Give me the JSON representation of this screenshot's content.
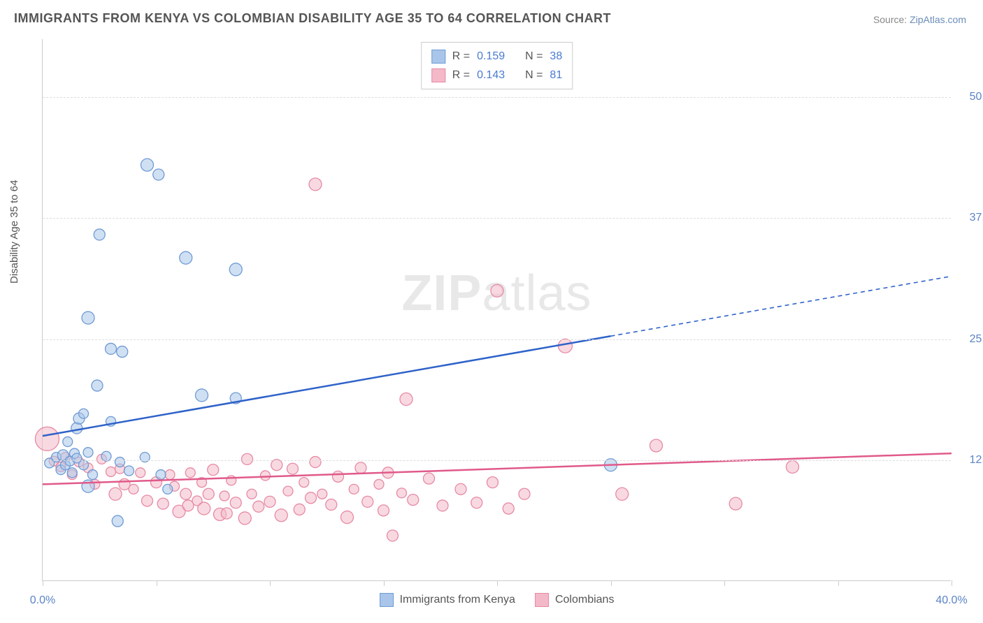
{
  "title": "IMMIGRANTS FROM KENYA VS COLOMBIAN DISABILITY AGE 35 TO 64 CORRELATION CHART",
  "source_label": "Source:",
  "source_name": "ZipAtlas.com",
  "ylabel": "Disability Age 35 to 64",
  "watermark": "ZIPatlas",
  "chart": {
    "type": "scatter",
    "xlim": [
      0,
      40
    ],
    "ylim": [
      0,
      56
    ],
    "x_ticks": [
      0,
      5,
      10,
      15,
      20,
      25,
      30,
      35,
      40
    ],
    "x_tick_labels": {
      "0": "0.0%",
      "40": "40.0%"
    },
    "y_ticks": [
      12.5,
      25.0,
      37.5,
      50.0
    ],
    "y_tick_labels": [
      "12.5%",
      "25.0%",
      "37.5%",
      "50.0%"
    ],
    "background_color": "#ffffff",
    "grid_color": "#dddddd",
    "axis_color": "#cccccc",
    "tick_label_color": "#5b84c4"
  },
  "series": [
    {
      "name": "Immigrants from Kenya",
      "marker_fill": "#a9c6ea",
      "marker_stroke": "#6f9bd4",
      "marker_fill_opacity": 0.55,
      "line_color": "#2e62c9",
      "line_width": 2.5,
      "trend": {
        "x1": 0,
        "y1": 15.0,
        "x2": 40,
        "y2": 31.5,
        "solid_until_x": 25
      },
      "R": "0.159",
      "N": "38",
      "points": [
        {
          "x": 0.3,
          "y": 12.2,
          "r": 7
        },
        {
          "x": 0.6,
          "y": 12.8,
          "r": 7
        },
        {
          "x": 0.8,
          "y": 11.5,
          "r": 7
        },
        {
          "x": 0.9,
          "y": 13.0,
          "r": 8
        },
        {
          "x": 1.0,
          "y": 12.0,
          "r": 7
        },
        {
          "x": 1.1,
          "y": 14.4,
          "r": 7
        },
        {
          "x": 1.2,
          "y": 12.4,
          "r": 7
        },
        {
          "x": 1.3,
          "y": 11.2,
          "r": 7
        },
        {
          "x": 1.4,
          "y": 13.2,
          "r": 7
        },
        {
          "x": 1.5,
          "y": 12.7,
          "r": 7
        },
        {
          "x": 1.5,
          "y": 15.8,
          "r": 8
        },
        {
          "x": 1.6,
          "y": 16.8,
          "r": 8
        },
        {
          "x": 1.8,
          "y": 12.0,
          "r": 7
        },
        {
          "x": 1.8,
          "y": 17.3,
          "r": 7
        },
        {
          "x": 2.0,
          "y": 9.8,
          "r": 9
        },
        {
          "x": 2.0,
          "y": 27.2,
          "r": 9
        },
        {
          "x": 2.0,
          "y": 13.3,
          "r": 7
        },
        {
          "x": 2.2,
          "y": 11.0,
          "r": 7
        },
        {
          "x": 2.4,
          "y": 20.2,
          "r": 8
        },
        {
          "x": 2.5,
          "y": 35.8,
          "r": 8
        },
        {
          "x": 2.8,
          "y": 12.9,
          "r": 7
        },
        {
          "x": 3.0,
          "y": 24.0,
          "r": 8
        },
        {
          "x": 3.0,
          "y": 16.5,
          "r": 7
        },
        {
          "x": 3.3,
          "y": 6.2,
          "r": 8
        },
        {
          "x": 3.4,
          "y": 12.3,
          "r": 7
        },
        {
          "x": 3.5,
          "y": 23.7,
          "r": 8
        },
        {
          "x": 3.8,
          "y": 11.4,
          "r": 7
        },
        {
          "x": 4.6,
          "y": 43.0,
          "r": 9
        },
        {
          "x": 4.5,
          "y": 12.8,
          "r": 7
        },
        {
          "x": 5.1,
          "y": 42.0,
          "r": 8
        },
        {
          "x": 5.2,
          "y": 11.0,
          "r": 7
        },
        {
          "x": 5.5,
          "y": 9.5,
          "r": 7
        },
        {
          "x": 6.3,
          "y": 33.4,
          "r": 9
        },
        {
          "x": 7.0,
          "y": 19.2,
          "r": 9
        },
        {
          "x": 8.5,
          "y": 32.2,
          "r": 9
        },
        {
          "x": 8.5,
          "y": 18.9,
          "r": 8
        },
        {
          "x": 25.0,
          "y": 12.0,
          "r": 9
        }
      ]
    },
    {
      "name": "Colombians",
      "marker_fill": "#f4b9c9",
      "marker_stroke": "#e68aa5",
      "marker_fill_opacity": 0.55,
      "line_color": "#e05a8a",
      "line_width": 2.5,
      "trend": {
        "x1": 0,
        "y1": 10.0,
        "x2": 40,
        "y2": 13.2,
        "solid_until_x": 40
      },
      "R": "0.143",
      "N": "81",
      "points": [
        {
          "x": 0.2,
          "y": 14.7,
          "r": 17
        },
        {
          "x": 0.5,
          "y": 12.4,
          "r": 7
        },
        {
          "x": 0.8,
          "y": 11.8,
          "r": 7
        },
        {
          "x": 1.0,
          "y": 12.8,
          "r": 7
        },
        {
          "x": 1.3,
          "y": 11.0,
          "r": 7
        },
        {
          "x": 1.6,
          "y": 12.3,
          "r": 7
        },
        {
          "x": 2.0,
          "y": 11.7,
          "r": 7
        },
        {
          "x": 2.3,
          "y": 10.0,
          "r": 7
        },
        {
          "x": 2.6,
          "y": 12.6,
          "r": 7
        },
        {
          "x": 3.0,
          "y": 11.3,
          "r": 7
        },
        {
          "x": 3.2,
          "y": 9.0,
          "r": 9
        },
        {
          "x": 3.4,
          "y": 11.6,
          "r": 7
        },
        {
          "x": 3.6,
          "y": 10.0,
          "r": 8
        },
        {
          "x": 4.0,
          "y": 9.5,
          "r": 7
        },
        {
          "x": 4.3,
          "y": 11.2,
          "r": 7
        },
        {
          "x": 4.6,
          "y": 8.3,
          "r": 8
        },
        {
          "x": 5.0,
          "y": 10.2,
          "r": 8
        },
        {
          "x": 5.3,
          "y": 8.0,
          "r": 8
        },
        {
          "x": 5.6,
          "y": 11.0,
          "r": 7
        },
        {
          "x": 5.8,
          "y": 9.8,
          "r": 7
        },
        {
          "x": 6.0,
          "y": 7.2,
          "r": 9
        },
        {
          "x": 6.3,
          "y": 9.0,
          "r": 8
        },
        {
          "x": 6.4,
          "y": 7.8,
          "r": 8
        },
        {
          "x": 6.5,
          "y": 11.2,
          "r": 7
        },
        {
          "x": 6.8,
          "y": 8.3,
          "r": 7
        },
        {
          "x": 7.0,
          "y": 10.2,
          "r": 7
        },
        {
          "x": 7.1,
          "y": 7.5,
          "r": 9
        },
        {
          "x": 7.3,
          "y": 9.0,
          "r": 8
        },
        {
          "x": 7.5,
          "y": 11.5,
          "r": 8
        },
        {
          "x": 7.8,
          "y": 6.9,
          "r": 9
        },
        {
          "x": 8.0,
          "y": 8.8,
          "r": 7
        },
        {
          "x": 8.1,
          "y": 7.0,
          "r": 8
        },
        {
          "x": 8.3,
          "y": 10.4,
          "r": 7
        },
        {
          "x": 8.5,
          "y": 8.1,
          "r": 8
        },
        {
          "x": 8.9,
          "y": 6.5,
          "r": 9
        },
        {
          "x": 9.0,
          "y": 12.6,
          "r": 8
        },
        {
          "x": 9.2,
          "y": 9.0,
          "r": 7
        },
        {
          "x": 9.5,
          "y": 7.7,
          "r": 8
        },
        {
          "x": 9.8,
          "y": 10.9,
          "r": 7
        },
        {
          "x": 10.0,
          "y": 8.2,
          "r": 8
        },
        {
          "x": 10.3,
          "y": 12.0,
          "r": 8
        },
        {
          "x": 10.5,
          "y": 6.8,
          "r": 9
        },
        {
          "x": 10.8,
          "y": 9.3,
          "r": 7
        },
        {
          "x": 11.0,
          "y": 11.6,
          "r": 8
        },
        {
          "x": 11.3,
          "y": 7.4,
          "r": 8
        },
        {
          "x": 11.5,
          "y": 10.2,
          "r": 7
        },
        {
          "x": 11.8,
          "y": 8.6,
          "r": 8
        },
        {
          "x": 12.0,
          "y": 12.3,
          "r": 8
        },
        {
          "x": 12.0,
          "y": 41.0,
          "r": 9
        },
        {
          "x": 12.3,
          "y": 9.0,
          "r": 7
        },
        {
          "x": 12.7,
          "y": 7.9,
          "r": 8
        },
        {
          "x": 13.0,
          "y": 10.8,
          "r": 8
        },
        {
          "x": 13.4,
          "y": 6.6,
          "r": 9
        },
        {
          "x": 13.7,
          "y": 9.5,
          "r": 7
        },
        {
          "x": 14.0,
          "y": 11.7,
          "r": 8
        },
        {
          "x": 14.3,
          "y": 8.2,
          "r": 8
        },
        {
          "x": 14.8,
          "y": 10.0,
          "r": 7
        },
        {
          "x": 15.0,
          "y": 7.3,
          "r": 8
        },
        {
          "x": 15.2,
          "y": 11.2,
          "r": 8
        },
        {
          "x": 15.4,
          "y": 4.7,
          "r": 8
        },
        {
          "x": 15.8,
          "y": 9.1,
          "r": 7
        },
        {
          "x": 16.0,
          "y": 18.8,
          "r": 9
        },
        {
          "x": 16.3,
          "y": 8.4,
          "r": 8
        },
        {
          "x": 17.0,
          "y": 10.6,
          "r": 8
        },
        {
          "x": 17.6,
          "y": 7.8,
          "r": 8
        },
        {
          "x": 18.4,
          "y": 9.5,
          "r": 8
        },
        {
          "x": 19.1,
          "y": 8.1,
          "r": 8
        },
        {
          "x": 19.8,
          "y": 10.2,
          "r": 8
        },
        {
          "x": 20.0,
          "y": 30.0,
          "r": 9
        },
        {
          "x": 20.5,
          "y": 7.5,
          "r": 8
        },
        {
          "x": 21.2,
          "y": 9.0,
          "r": 8
        },
        {
          "x": 23.0,
          "y": 24.3,
          "r": 10
        },
        {
          "x": 25.5,
          "y": 9.0,
          "r": 9
        },
        {
          "x": 27.0,
          "y": 14.0,
          "r": 9
        },
        {
          "x": 30.5,
          "y": 8.0,
          "r": 9
        },
        {
          "x": 33.0,
          "y": 11.8,
          "r": 9
        }
      ]
    }
  ],
  "legend_top_labels": {
    "R": "R =",
    "N": "N ="
  },
  "legend_bottom": [
    {
      "label": "Immigrants from Kenya",
      "fill": "#a9c6ea",
      "stroke": "#6f9bd4"
    },
    {
      "label": "Colombians",
      "fill": "#f4b9c9",
      "stroke": "#e68aa5"
    }
  ]
}
